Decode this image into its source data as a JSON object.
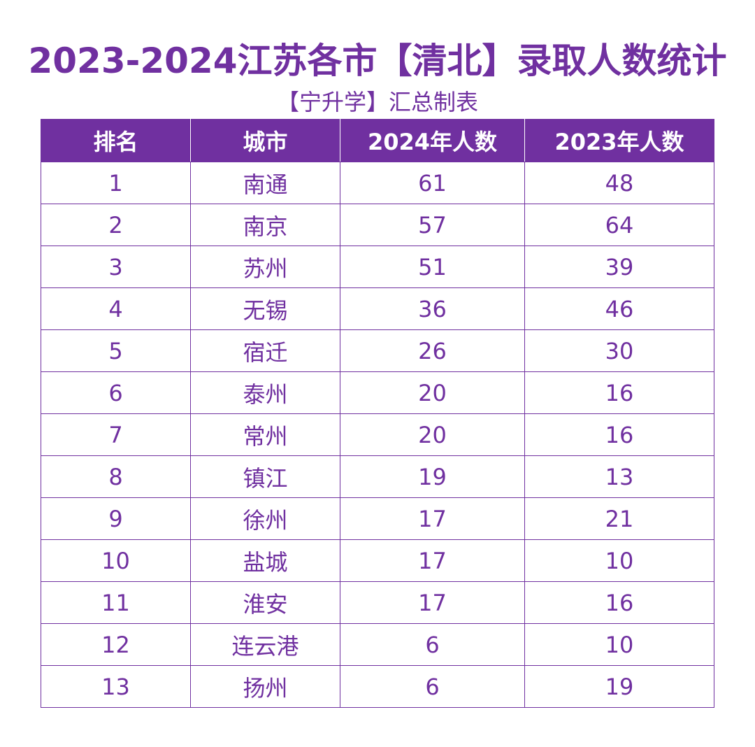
{
  "title": "2023-2024江苏各市【清北】录取人数统计",
  "subtitle": "【宁升学】汇总制表",
  "colors": {
    "accent": "#7030a0",
    "header_text": "#ffffff",
    "background": "#ffffff"
  },
  "table": {
    "headers": {
      "rank": "排名",
      "city": "城市",
      "y2024": "2024年人数",
      "y2023": "2023年人数"
    },
    "rows": [
      {
        "rank": "1",
        "city": "南通",
        "y2024": "61",
        "y2023": "48"
      },
      {
        "rank": "2",
        "city": "南京",
        "y2024": "57",
        "y2023": "64"
      },
      {
        "rank": "3",
        "city": "苏州",
        "y2024": "51",
        "y2023": "39"
      },
      {
        "rank": "4",
        "city": "无锡",
        "y2024": "36",
        "y2023": "46"
      },
      {
        "rank": "5",
        "city": "宿迁",
        "y2024": "26",
        "y2023": "30"
      },
      {
        "rank": "6",
        "city": "泰州",
        "y2024": "20",
        "y2023": "16"
      },
      {
        "rank": "7",
        "city": "常州",
        "y2024": "20",
        "y2023": "16"
      },
      {
        "rank": "8",
        "city": "镇江",
        "y2024": "19",
        "y2023": "13"
      },
      {
        "rank": "9",
        "city": "徐州",
        "y2024": "17",
        "y2023": "21"
      },
      {
        "rank": "10",
        "city": "盐城",
        "y2024": "17",
        "y2023": "10"
      },
      {
        "rank": "11",
        "city": "淮安",
        "y2024": "17",
        "y2023": "16"
      },
      {
        "rank": "12",
        "city": "连云港",
        "y2024": "6",
        "y2023": "10"
      },
      {
        "rank": "13",
        "city": "扬州",
        "y2024": "6",
        "y2023": "19"
      }
    ]
  }
}
